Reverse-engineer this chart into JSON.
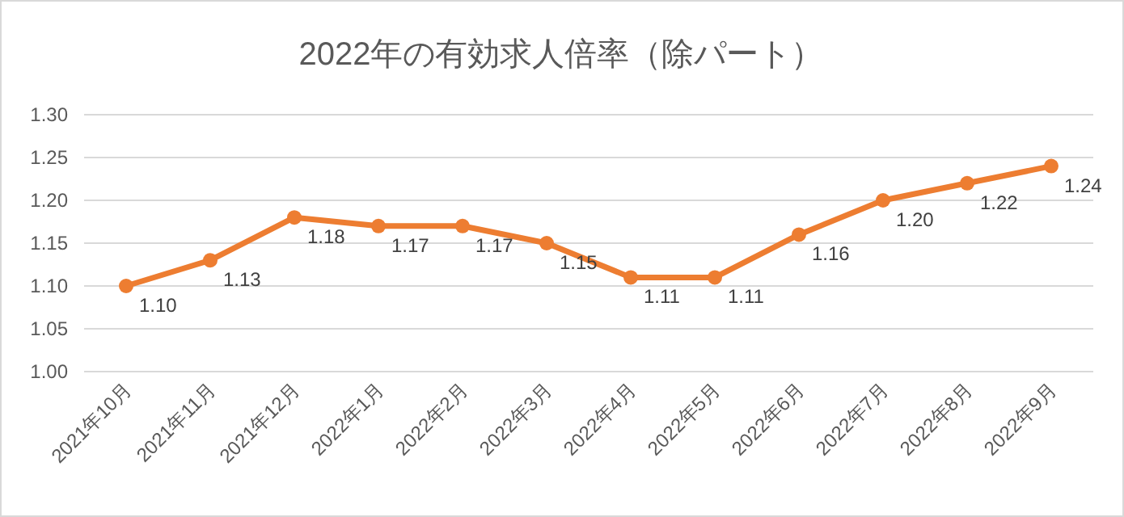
{
  "chart_data": {
    "type": "line",
    "title": "2022年の有効求人倍率（除パート）",
    "categories": [
      "2021年10月",
      "2021年11月",
      "2021年12月",
      "2022年1月",
      "2022年2月",
      "2022年3月",
      "2022年4月",
      "2022年5月",
      "2022年6月",
      "2022年7月",
      "2022年8月",
      "2022年9月"
    ],
    "values": [
      1.1,
      1.13,
      1.18,
      1.17,
      1.17,
      1.15,
      1.11,
      1.11,
      1.16,
      1.2,
      1.22,
      1.24
    ],
    "value_labels": [
      "1.10",
      "1.13",
      "1.18",
      "1.17",
      "1.17",
      "1.15",
      "1.11",
      "1.11",
      "1.16",
      "1.20",
      "1.22",
      "1.24"
    ],
    "color": "#ed7d31",
    "ylim": [
      1.0,
      1.3
    ],
    "yticks": [
      {
        "value": 1.0,
        "label": "1.00"
      },
      {
        "value": 1.05,
        "label": "1.05"
      },
      {
        "value": 1.1,
        "label": "1.10"
      },
      {
        "value": 1.15,
        "label": "1.15"
      },
      {
        "value": 1.2,
        "label": "1.20"
      },
      {
        "value": 1.25,
        "label": "1.25"
      },
      {
        "value": 1.3,
        "label": "1.30"
      }
    ],
    "grid": "y",
    "marker": "circle"
  }
}
